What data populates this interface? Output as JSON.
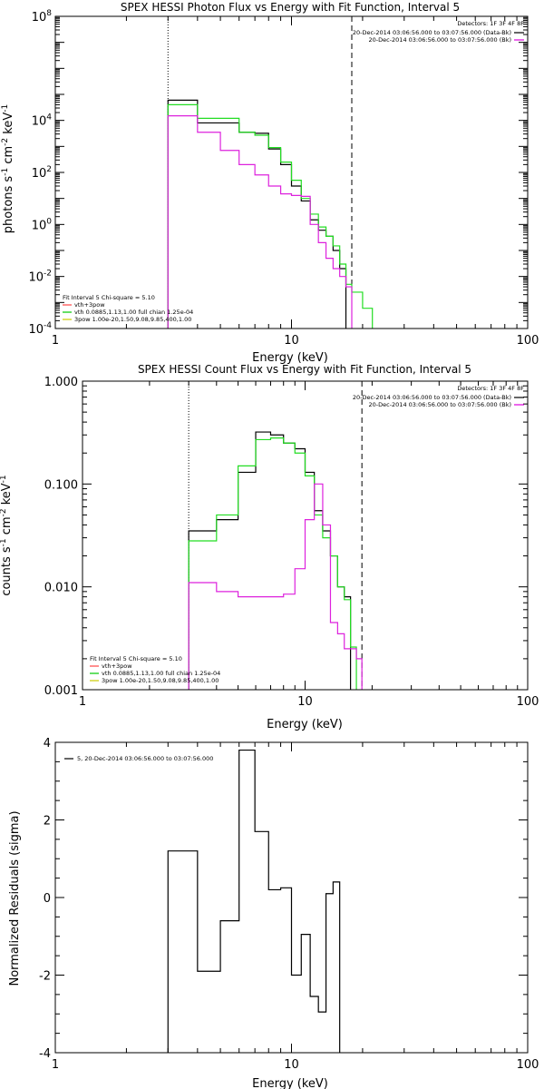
{
  "chart_data": [
    {
      "type": "line",
      "title": "SPEX HESSI Photon Flux vs Energy with Fit Function, Interval 5",
      "xlabel": "Energy (keV)",
      "ylabel": "photons s",
      "ylabel_parts": {
        "t1": "photons s",
        "s1": "-1",
        "t2": " cm",
        "s2": "-2",
        "t3": " keV",
        "s3": "-1"
      },
      "x_scale": "log",
      "y_scale": "log",
      "xlim": [
        1,
        100
      ],
      "ylim": [
        0.0001,
        100000000
      ],
      "xticks": [
        {
          "v": 1,
          "label": "1"
        },
        {
          "v": 10,
          "label": "10"
        },
        {
          "v": 100,
          "label": "100"
        }
      ],
      "yticks": [
        {
          "v": 0.0001,
          "base": "10",
          "exp": "-4"
        },
        {
          "v": 0.01,
          "base": "10",
          "exp": "-2"
        },
        {
          "v": 1,
          "base": "10",
          "exp": "0"
        },
        {
          "v": 100,
          "base": "10",
          "exp": "2"
        },
        {
          "v": 10000,
          "base": "10",
          "exp": "4"
        },
        {
          "v": 100000000,
          "base": "10",
          "exp": "8"
        }
      ],
      "vlines": [
        {
          "x": 3.0,
          "style": "dotted"
        },
        {
          "x": 18.0,
          "style": "dashed"
        }
      ],
      "legend_tr": {
        "header": "Detectors: 1F 3F 4F 8F",
        "items": [
          {
            "text": "20-Dec-2014 03:06:56.000 to 03:07:56.000 (Data-Bk)",
            "color": "#000000"
          },
          {
            "text": "20-Dec-2014 03:06:56.000 to 03:07:56.000 (Bk)",
            "color": "#e000e0"
          }
        ]
      },
      "legend_bl": {
        "header": "Fit Interval 5   Chi-square = 5.10",
        "items": [
          {
            "text": "vth+3pow",
            "color": "#ff4444"
          },
          {
            "text": "vth 0.0885,1.13,1.00  full chian 1.25e-04",
            "color": "#00cc00"
          },
          {
            "text": "3pow 1.00e-20,1.50,9.08,9.85,400,1.00",
            "color": "#cccc00"
          }
        ]
      },
      "edges": [
        3.0,
        4.0,
        5.0,
        6.0,
        7.0,
        8.0,
        9.0,
        10.0,
        11.0,
        12.0,
        13.0,
        14.0,
        15.0,
        16.0,
        17.0,
        18.0,
        20.0,
        22.0
      ],
      "series": [
        {
          "color": "#000000",
          "values": [
            60000,
            8000,
            8000,
            3500,
            3200,
            800,
            200,
            30,
            8,
            1.5,
            0.6,
            0.35,
            0.1,
            0.02
          ],
          "from": 3.0
        },
        {
          "color": "#22dd22",
          "values": [
            40000,
            12000,
            12000,
            3500,
            2700,
            900,
            250,
            50,
            10,
            2.5,
            0.8,
            0.35,
            0.15,
            0.03,
            0.005,
            0.0025,
            0.0006
          ],
          "from": 3.0
        },
        {
          "color": "#dd22dd",
          "values": [
            15000,
            3500,
            700,
            200,
            80,
            30,
            15,
            13,
            12,
            1.0,
            0.2,
            0.05,
            0.02,
            0.01,
            0.004
          ],
          "from": 3.0
        }
      ]
    },
    {
      "type": "line",
      "title": "SPEX HESSI Count Flux vs Energy with Fit Function, Interval 5",
      "xlabel": "Energy (keV)",
      "ylabel": "counts s",
      "ylabel_parts": {
        "t1": "counts s",
        "s1": "-1",
        "t2": " cm",
        "s2": "-2",
        "t3": " keV",
        "s3": "-1"
      },
      "x_scale": "log",
      "y_scale": "log",
      "xlim": [
        1,
        100
      ],
      "ylim": [
        0.001,
        1.0
      ],
      "xticks": [
        {
          "v": 1,
          "label": "1"
        },
        {
          "v": 10,
          "label": "10"
        },
        {
          "v": 100,
          "label": "100"
        }
      ],
      "yticks": [
        {
          "v": 0.001,
          "label": "0.001"
        },
        {
          "v": 0.01,
          "label": "0.010"
        },
        {
          "v": 0.1,
          "label": "0.100"
        },
        {
          "v": 1.0,
          "label": "1.000"
        }
      ],
      "vlines": [
        {
          "x": 3.0,
          "style": "dotted"
        },
        {
          "x": 18.0,
          "style": "dashed"
        }
      ],
      "legend_tr": {
        "header": "Detectors: 1F 3F 4F 8F",
        "items": [
          {
            "text": "20-Dec-2014 03:06:56.000 to 03:07:56.000 (Data-Bk)",
            "color": "#000000"
          },
          {
            "text": "20-Dec-2014 03:06:56.000 to 03:07:56.000 (Bk)",
            "color": "#e000e0"
          }
        ]
      },
      "legend_bl": {
        "header": "Fit Interval 5   Chi-square = 5.10",
        "items": [
          {
            "text": "vth+3pow",
            "color": "#ff4444"
          },
          {
            "text": "vth 0.0885,1.13,1.00  full chian 1.25e-04",
            "color": "#00cc00"
          },
          {
            "text": "3pow 1.00e-20,1.50,9.08,9.85,400,1.00",
            "color": "#cccc00"
          }
        ]
      },
      "edges": [
        3.0,
        4.0,
        5.0,
        6.0,
        7.0,
        8.0,
        9.0,
        10.0,
        11.0,
        12.0,
        13.0,
        14.0,
        15.0,
        16.0,
        17.0,
        18.0,
        20.0,
        22.0
      ],
      "series": [
        {
          "color": "#000000",
          "values": [
            0.035,
            0.045,
            0.13,
            0.32,
            0.3,
            0.25,
            0.22,
            0.13,
            0.055,
            0.035,
            0.02,
            0.01,
            0.008
          ],
          "from": 3.0
        },
        {
          "color": "#22dd22",
          "values": [
            0.028,
            0.05,
            0.15,
            0.27,
            0.28,
            0.25,
            0.2,
            0.12,
            0.05,
            0.03,
            0.02,
            0.01,
            0.0075,
            0.0026
          ],
          "from": 3.0
        },
        {
          "color": "#dd22dd",
          "values": [
            0.011,
            0.009,
            0.008,
            0.008,
            0.008,
            0.0085,
            0.015,
            0.045,
            0.1,
            0.04,
            0.0045,
            0.0035,
            0.0025,
            0.0025,
            0.002
          ],
          "from": 3.0
        }
      ]
    },
    {
      "type": "line",
      "title": "",
      "xlabel": "Energy (keV)",
      "ylabel": "Normalized Residuals (sigma)",
      "x_scale": "log",
      "y_scale": "linear",
      "xlim": [
        1,
        100
      ],
      "ylim": [
        -4,
        4
      ],
      "xticks": [
        {
          "v": 1,
          "label": "1"
        },
        {
          "v": 10,
          "label": "10"
        },
        {
          "v": 100,
          "label": "100"
        }
      ],
      "yticks": [
        {
          "v": -4,
          "label": "-4"
        },
        {
          "v": -2,
          "label": "-2"
        },
        {
          "v": 0,
          "label": "0"
        },
        {
          "v": 2,
          "label": "2"
        },
        {
          "v": 4,
          "label": "4"
        }
      ],
      "legend_tl": {
        "items": [
          {
            "text": "5, 20-Dec-2014 03:06:56.000 to 03:07:56.000",
            "color": "#000000"
          }
        ]
      },
      "edges": [
        3.0,
        4.0,
        5.0,
        6.0,
        7.0,
        8.0,
        9.0,
        10.0,
        11.0,
        12.0,
        13.0,
        14.0,
        15.0,
        16.0,
        17.0,
        18.0
      ],
      "series": [
        {
          "color": "#000000",
          "values": [
            1.2,
            -1.9,
            -0.6,
            3.8,
            1.7,
            0.2,
            0.25,
            -2.0,
            -0.95,
            -2.55,
            -2.95,
            0.1,
            0.4
          ],
          "from": 3.0
        }
      ]
    }
  ]
}
